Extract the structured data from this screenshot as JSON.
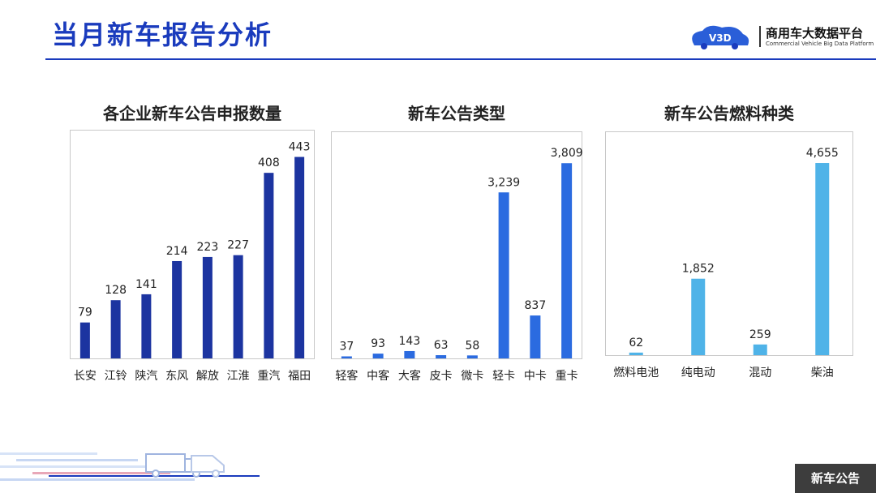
{
  "header": {
    "title": "当月新车报告分析",
    "logo_name": "商用车大数据平台",
    "logo_sub": "Commercial Vehicle Big Data Platform",
    "logo_mark": "V3D"
  },
  "footer": {
    "badge": "新车公告"
  },
  "colors": {
    "brand": "#1a3bbd",
    "dark_bar": "#1c34a0",
    "mid_bar": "#2b6be0",
    "light_bar": "#4fb3e8"
  },
  "chart_data": [
    {
      "type": "bar",
      "title": "各企业新车公告申报数量",
      "categories": [
        "长安",
        "江铃",
        "陕汽",
        "东风",
        "解放",
        "江淮",
        "重汽",
        "福田"
      ],
      "values": [
        79,
        128,
        141,
        214,
        223,
        227,
        408,
        443
      ],
      "value_labels": [
        "79",
        "128",
        "141",
        "214",
        "223",
        "227",
        "408",
        "443"
      ],
      "ylim": [
        0,
        460
      ],
      "color": "#1c34a0"
    },
    {
      "type": "bar",
      "title": "新车公告类型",
      "categories": [
        "轻客",
        "中客",
        "大客",
        "皮卡",
        "微卡",
        "轻卡",
        "中卡",
        "重卡"
      ],
      "values": [
        37,
        93,
        143,
        63,
        58,
        3239,
        837,
        3809
      ],
      "value_labels": [
        "37",
        "93",
        "143",
        "63",
        "58",
        "3,239",
        "837",
        "3,809"
      ],
      "ylim": [
        0,
        4050
      ],
      "color": "#2b6be0"
    },
    {
      "type": "bar",
      "title": "新车公告燃料种类",
      "categories": [
        "燃料电池",
        "纯电动",
        "混动",
        "柴油"
      ],
      "values": [
        62,
        1852,
        259,
        4655
      ],
      "value_labels": [
        "62",
        "1,852",
        "259",
        "4,655"
      ],
      "ylim": [
        0,
        4950
      ],
      "color": "#4fb3e8"
    }
  ]
}
